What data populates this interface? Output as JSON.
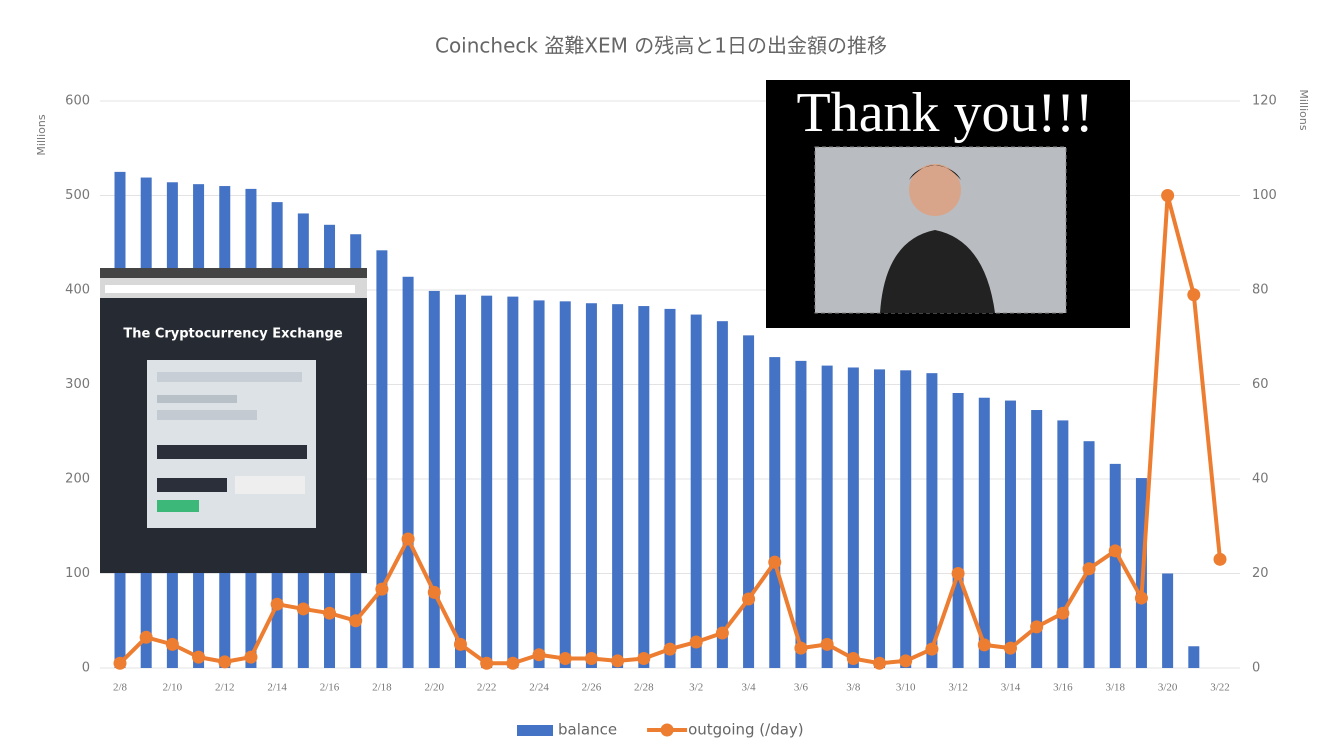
{
  "chart_data": {
    "type": "bar_line",
    "title": "Coincheck 盗難XEM の残高と1日の出金額の推移",
    "y_label": "Millions",
    "y2_label": "Millions",
    "categories": [
      "2/8",
      null,
      "2/10",
      null,
      "2/12",
      null,
      "2/14",
      null,
      "2/16",
      null,
      "2/18",
      null,
      "2/20",
      null,
      "2/22",
      null,
      "2/24",
      null,
      "2/26",
      null,
      "2/28",
      null,
      "3/2",
      null,
      "3/4",
      null,
      "3/6",
      null,
      "3/8",
      null,
      "3/10",
      null,
      "3/12",
      null,
      "3/14",
      null,
      "3/16",
      null,
      "3/18",
      null,
      "3/20",
      null,
      "3/22"
    ],
    "series": [
      {
        "name": "balance",
        "type": "bar",
        "color": "#4472c4",
        "values": [
          525,
          519,
          514,
          512,
          510,
          507,
          493,
          481,
          469,
          459,
          442,
          414,
          399,
          395,
          394,
          393,
          389,
          388,
          386,
          385,
          383,
          380,
          374,
          367,
          352,
          329,
          325,
          320,
          318,
          316,
          315,
          312,
          291,
          286,
          283,
          273,
          262,
          240,
          216,
          201,
          100,
          23,
          null
        ]
      },
      {
        "name": "outgoing (/day)",
        "type": "line",
        "axis": "y2",
        "color": "#ed7d31",
        "values": [
          1,
          6.5,
          5,
          2.3,
          1.3,
          2.3,
          13.5,
          12.5,
          11.6,
          10,
          16.7,
          27.3,
          16,
          5,
          1,
          1,
          2.8,
          2,
          2,
          1.5,
          2,
          4,
          5.5,
          7.4,
          14.6,
          22.4,
          4.2,
          5,
          2,
          1,
          1.5,
          4,
          20,
          4.9,
          4.2,
          8.7,
          11.6,
          21,
          24.8,
          14.8,
          100,
          79,
          23
        ]
      }
    ],
    "ylim": [
      0,
      600
    ],
    "yticks": [
      0,
      100,
      200,
      300,
      400,
      500,
      600
    ],
    "y2lim": [
      0,
      120
    ],
    "y2ticks": [
      0,
      20,
      40,
      60,
      80,
      100,
      120
    ],
    "grid": true,
    "legend": "bottom"
  },
  "overlays": {
    "exchange_screenshot": {
      "title": "The Cryptocurrency Exchange"
    },
    "thank_you_image": {
      "caption": "Thank you!!!"
    }
  }
}
